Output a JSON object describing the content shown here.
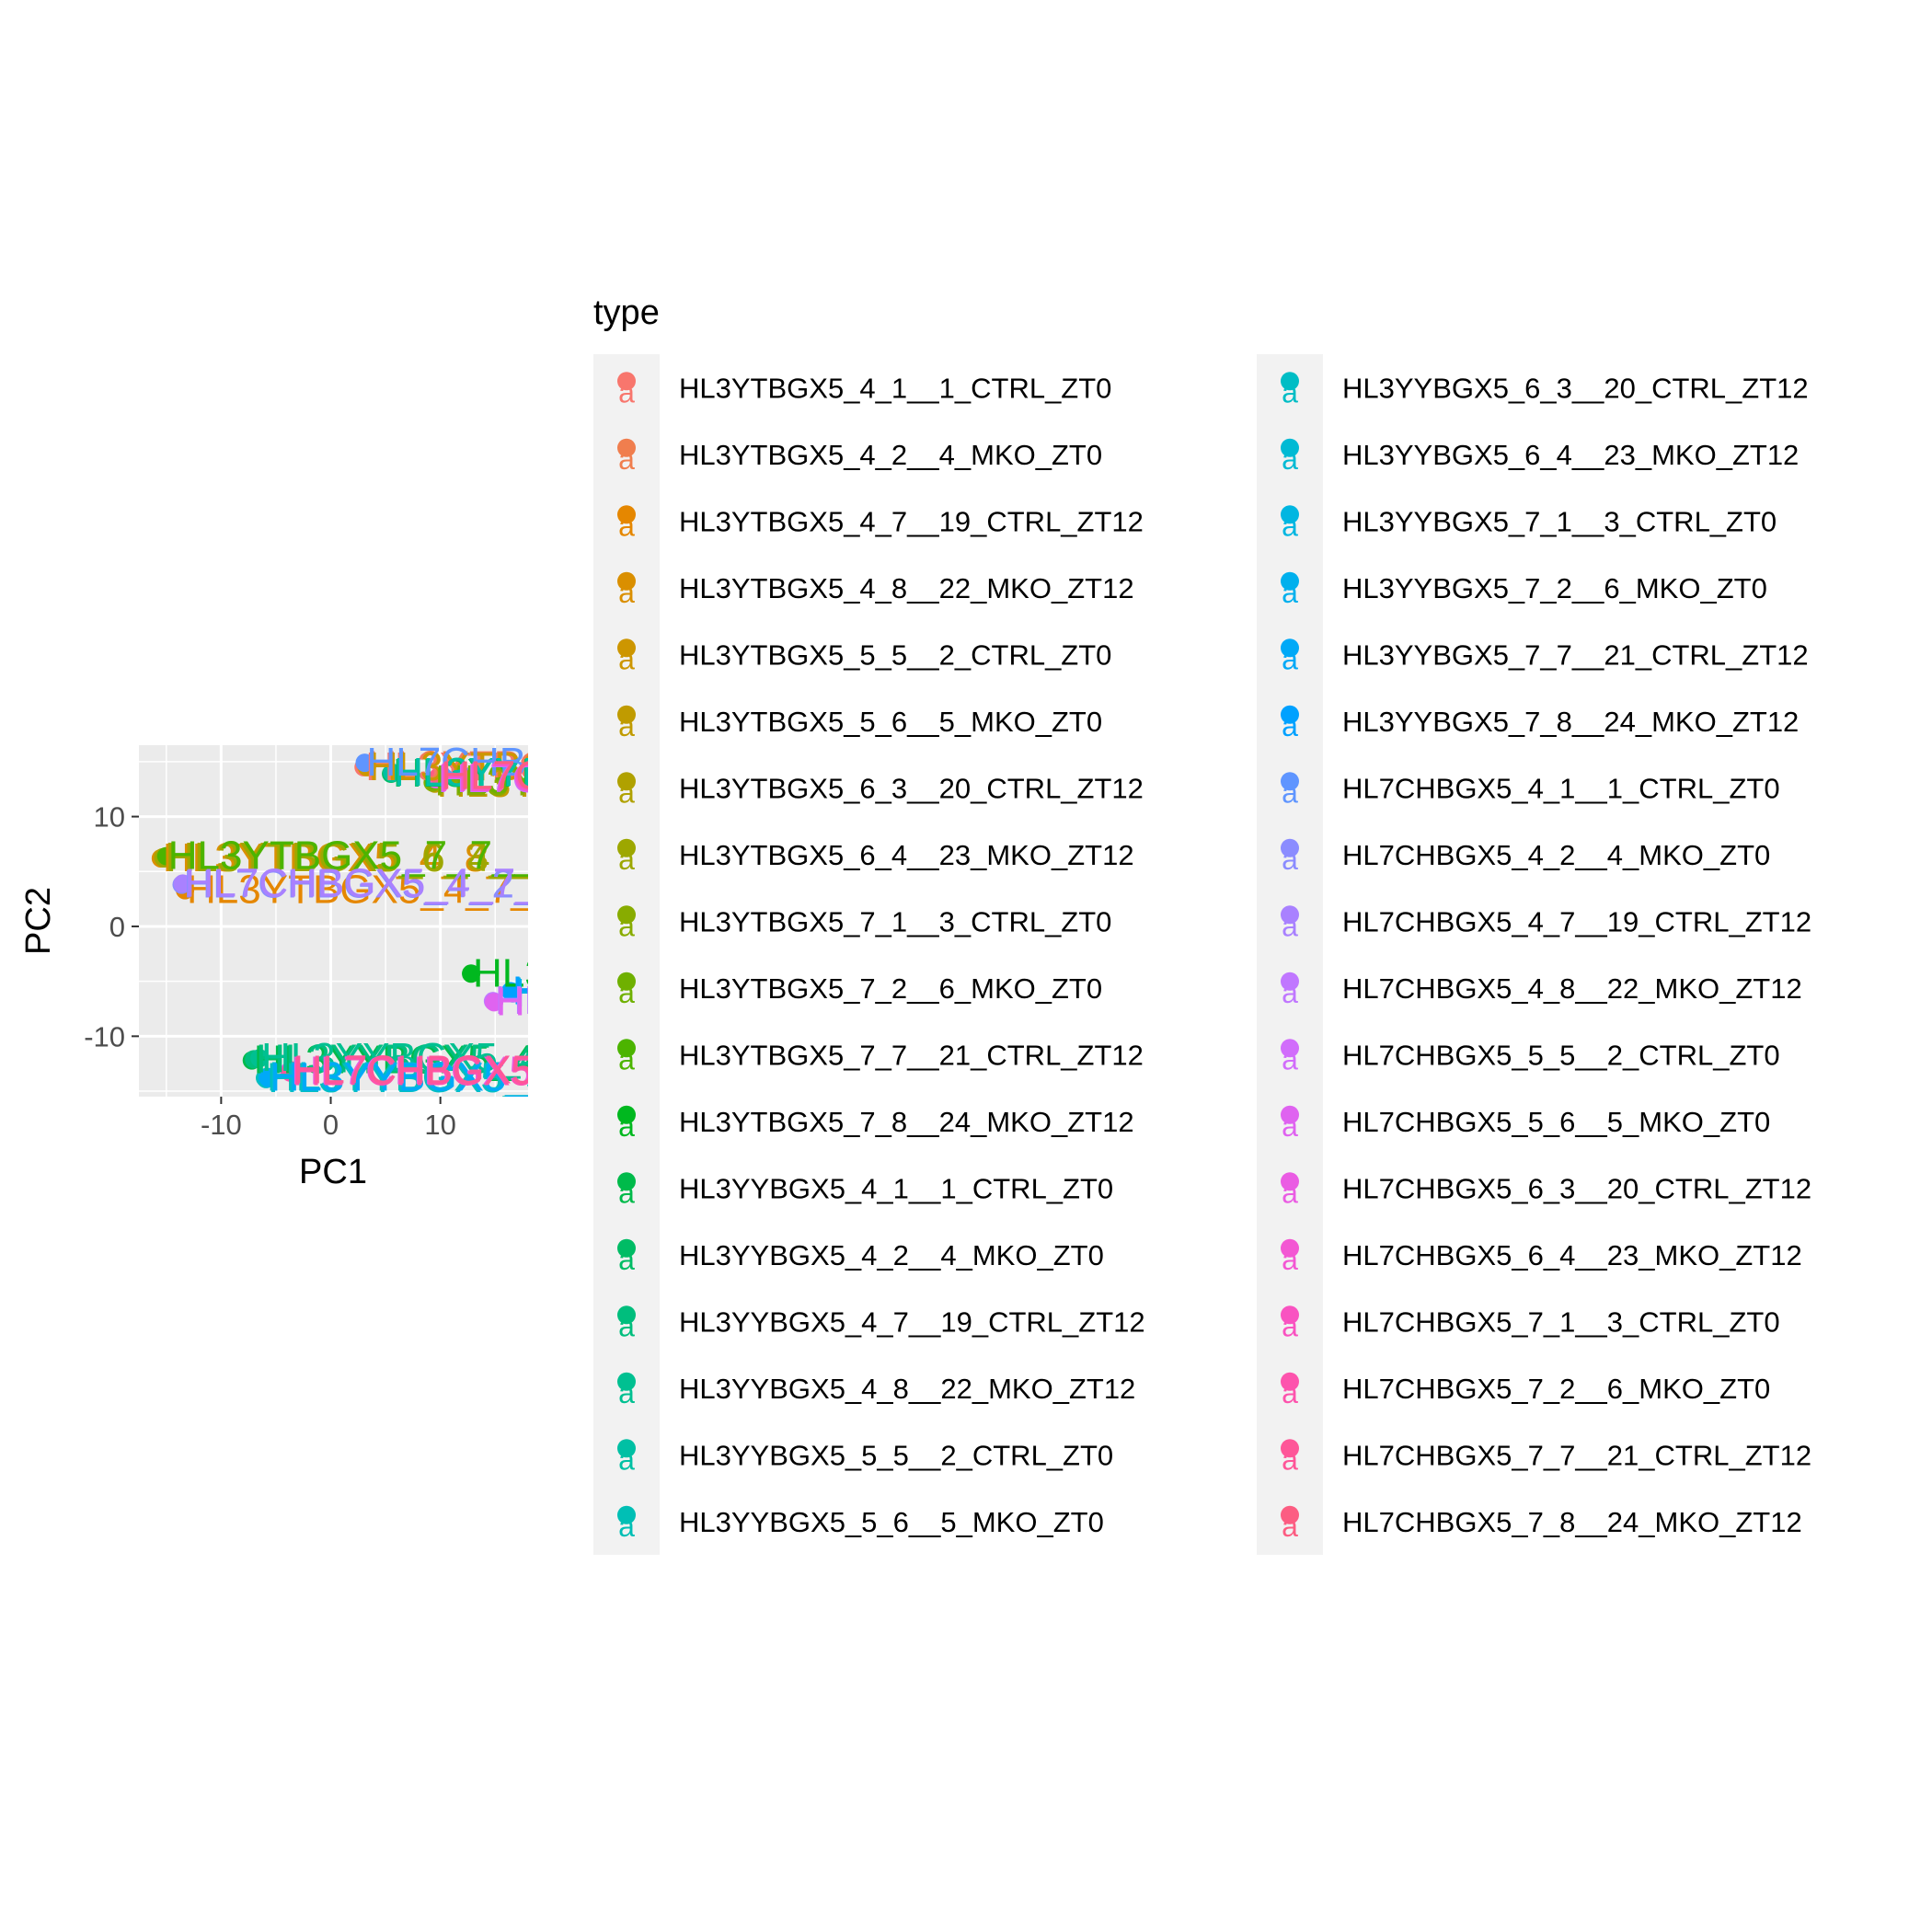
{
  "chart_data": {
    "type": "scatter",
    "xlabel": "PC1",
    "ylabel": "PC2",
    "xlim": [
      -17.5,
      18
    ],
    "ylim": [
      -15.5,
      16.5
    ],
    "x_ticks": [
      -10,
      0,
      10
    ],
    "y_ticks": [
      -10,
      0,
      10
    ],
    "x_tick_labels": [
      "-10",
      "0",
      "10"
    ],
    "y_tick_labels": [
      "-10",
      "0",
      "10"
    ],
    "grid": true,
    "legend": {
      "title": "type",
      "position": "right",
      "columns": 2,
      "key_glyph": "a"
    },
    "series": [
      {
        "name": "HL3YTBGX5_4_1__1_CTRL_ZT0",
        "color": "#F8766D",
        "x": 3.0,
        "y": 14.5,
        "label": "HL3YTBGX5_4_1__1_CTRL_ZT0"
      },
      {
        "name": "HL3YTBGX5_4_2__4_MKO_ZT0",
        "color": "#F07E4E",
        "x": 3.2,
        "y": 14.6,
        "label": "HL3YTBGX5_4_2__4_MKO_ZT0"
      },
      {
        "name": "HL3YTBGX5_4_7__19_CTRL_ZT12",
        "color": "#E58700",
        "x": -13.3,
        "y": 3.3,
        "label": "HL3YTBGX5_4_7__19_CTRL_ZT12"
      },
      {
        "name": "HL3YTBGX5_4_8__22_MKO_ZT12",
        "color": "#DA8F00",
        "x": -15.5,
        "y": 6.2,
        "label": "HL3YTBGX5_4_8__22_MKO_ZT12"
      },
      {
        "name": "HL3YTBGX5_5_5__2_CTRL_ZT0",
        "color": "#CD9600",
        "x": 3.3,
        "y": 14.5,
        "label": "HL3YTBGX5_5_5__2_CTRL_ZT0"
      },
      {
        "name": "HL3YTBGX5_5_6__5_MKO_ZT0",
        "color": "#C09B00",
        "x": 9.5,
        "y": 13.0,
        "label": "HL3YTBGX5_5_6__5_MKO_ZT0"
      },
      {
        "name": "HL3YTBGX5_6_3__20_CTRL_ZT12",
        "color": "#B0A100",
        "x": -15.3,
        "y": 6.3,
        "label": "HL3YTBGX5_6_3__20_CTRL_ZT12"
      },
      {
        "name": "HL3YTBGX5_6_4__23_MKO_ZT12",
        "color": "#9DA700",
        "x": -15.2,
        "y": 6.2,
        "label": "HL3YTBGX5_6_4__23_MKO_ZT12"
      },
      {
        "name": "HL3YTBGX5_7_1__3_CTRL_ZT0",
        "color": "#88AC00",
        "x": 9.3,
        "y": 13.1,
        "label": "HL3YTBGX5_7_1__3_CTRL_ZT0"
      },
      {
        "name": "HL3YTBGX5_7_2__6_MKO_ZT0",
        "color": "#6FB000",
        "x": 9.4,
        "y": 13.3,
        "label": "HL3YTBGX5_7_2__6_MKO_ZT0"
      },
      {
        "name": "HL3YTBGX5_7_7__21_CTRL_ZT12",
        "color": "#4CB400",
        "x": -15.0,
        "y": 6.4,
        "label": "HL3YTBGX5_7_7__21_CTRL_ZT12"
      },
      {
        "name": "HL3YTBGX5_7_8__24_MKO_ZT12",
        "color": "#00B81F",
        "x": 12.8,
        "y": -4.3,
        "label": "HL3YTBGX5_7_8__24_MKO_ZT12"
      },
      {
        "name": "HL3YYBGX5_4_1__1_CTRL_ZT0",
        "color": "#00BA4A",
        "x": -7.2,
        "y": -12.2,
        "label": "HL3YYBGX5_4_1__1_CTRL_ZT0"
      },
      {
        "name": "HL3YYBGX5_4_2__4_MKO_ZT0",
        "color": "#00BC65",
        "x": 5.5,
        "y": 13.9,
        "label": "HL3YYBGX5_4_2__4_MKO_ZT0"
      },
      {
        "name": "HL3YYBGX5_4_7__19_CTRL_ZT12",
        "color": "#00BE7D",
        "x": -7.0,
        "y": -12.1,
        "label": "HL3YYBGX5_4_7__19_CTRL_ZT12"
      },
      {
        "name": "HL3YYBGX5_4_8__22_MKO_ZT12",
        "color": "#00C091",
        "x": -6.5,
        "y": -12.0,
        "label": "HL3YYBGX5_4_8__22_MKO_ZT12"
      },
      {
        "name": "HL3YYBGX5_5_5__2_CTRL_ZT0",
        "color": "#00C0A4",
        "x": 5.6,
        "y": 14.0,
        "label": "HL3YYBGX5_5_5__2_CTRL_ZT0"
      },
      {
        "name": "HL3YYBGX5_5_6__5_MKO_ZT0",
        "color": "#00BFB5",
        "x": -6.0,
        "y": -13.8,
        "label": "HL3YYBGX5_5_6__5_MKO_ZT0"
      },
      {
        "name": "HL3YYBGX5_6_3__20_CTRL_ZT12",
        "color": "#00BDC5",
        "x": -5.9,
        "y": -13.9,
        "label": "HL3YYBGX5_6_3__20_CTRL_ZT12"
      },
      {
        "name": "HL3YYBGX5_6_4__23_MKO_ZT12",
        "color": "#00BAD4",
        "x": -5.8,
        "y": -13.7,
        "label": "HL3YYBGX5_6_4__23_MKO_ZT12"
      },
      {
        "name": "HL3YYBGX5_7_1__3_CTRL_ZT0",
        "color": "#00B6E1",
        "x": 16.5,
        "y": -6.0,
        "label": "HL3YYBGX5_7_1__3_CTRL_ZT0"
      },
      {
        "name": "HL3YYBGX5_7_2__6_MKO_ZT0",
        "color": "#00B0ED",
        "x": 16.6,
        "y": -6.1,
        "label": "HL3YYBGX5_7_2__6_MKO_ZT0"
      },
      {
        "name": "HL3YYBGX5_7_7__21_CTRL_ZT12",
        "color": "#00A9F7",
        "x": -5.7,
        "y": -13.8,
        "label": "HL3YYBGX5_7_7__21_CTRL_ZT12"
      },
      {
        "name": "HL3YYBGX5_7_8__24_MKO_ZT12",
        "color": "#00A1FF",
        "x": 16.4,
        "y": -5.9,
        "label": "HL3YYBGX5_7_8__24_MKO_ZT12"
      },
      {
        "name": "HL7CHBGX5_4_1__1_CTRL_ZT0",
        "color": "#5F95FF",
        "x": 3.1,
        "y": 14.9,
        "label": "HL7CHBGX5_4_1__1_CTRL_ZT0"
      },
      {
        "name": "HL7CHBGX5_4_2__4_MKO_ZT0",
        "color": "#8B8CFF",
        "x": -13.6,
        "y": 3.8,
        "label": "HL7CHBGX5_4_2__4_MKO_ZT0"
      },
      {
        "name": "HL7CHBGX5_4_7__19_CTRL_ZT12",
        "color": "#A981FF",
        "x": -13.5,
        "y": 3.9,
        "label": "HL7CHBGX5_4_7__19_CTRL_ZT12"
      },
      {
        "name": "HL7CHBGX5_4_8__22_MKO_ZT12",
        "color": "#C077FF",
        "x": 14.8,
        "y": -6.8,
        "label": "HL7CHBGX5_4_8__22_MKO_ZT12"
      },
      {
        "name": "HL7CHBGX5_5_5__2_CTRL_ZT0",
        "color": "#D16DFB",
        "x": 9.6,
        "y": 13.4,
        "label": "HL7CHBGX5_5_5__2_CTRL_ZT0"
      },
      {
        "name": "HL7CHBGX5_5_6__5_MKO_ZT0",
        "color": "#DF63F0",
        "x": 14.9,
        "y": -6.9,
        "label": "HL7CHBGX5_5_6__5_MKO_ZT0"
      },
      {
        "name": "HL7CHBGX5_6_3__20_CTRL_ZT12",
        "color": "#EA5CE3",
        "x": -3.8,
        "y": -13.2,
        "label": "HL7CHBGX5_6_3__20_CTRL_ZT12"
      },
      {
        "name": "HL7CHBGX5_6_4__23_MKO_ZT12",
        "color": "#F357D3",
        "x": 9.7,
        "y": 13.5,
        "label": "HL7CHBGX5_6_4__23_MKO_ZT12"
      },
      {
        "name": "HL7CHBGX5_7_1__3_CTRL_ZT0",
        "color": "#F953C1",
        "x": 9.8,
        "y": 13.6,
        "label": "HL7CHBGX5_7_1__3_CTRL_ZT0"
      },
      {
        "name": "HL7CHBGX5_7_2__6_MKO_ZT0",
        "color": "#FD53AD",
        "x": -3.7,
        "y": -13.3,
        "label": "HL7CHBGX5_7_2__6_MKO_ZT0"
      },
      {
        "name": "HL7CHBGX5_7_7__21_CTRL_ZT12",
        "color": "#FE5698",
        "x": -3.6,
        "y": -13.1,
        "label": "HL7CHBGX5_7_7__21_CTRL_ZT12"
      },
      {
        "name": "HL7CHBGX5_7_8__24_MKO_ZT12",
        "color": "#FC5D82",
        "x": 9.9,
        "y": 13.7,
        "label": "HL7CHBGX5_7_8__24_MKO_ZT12"
      }
    ]
  }
}
